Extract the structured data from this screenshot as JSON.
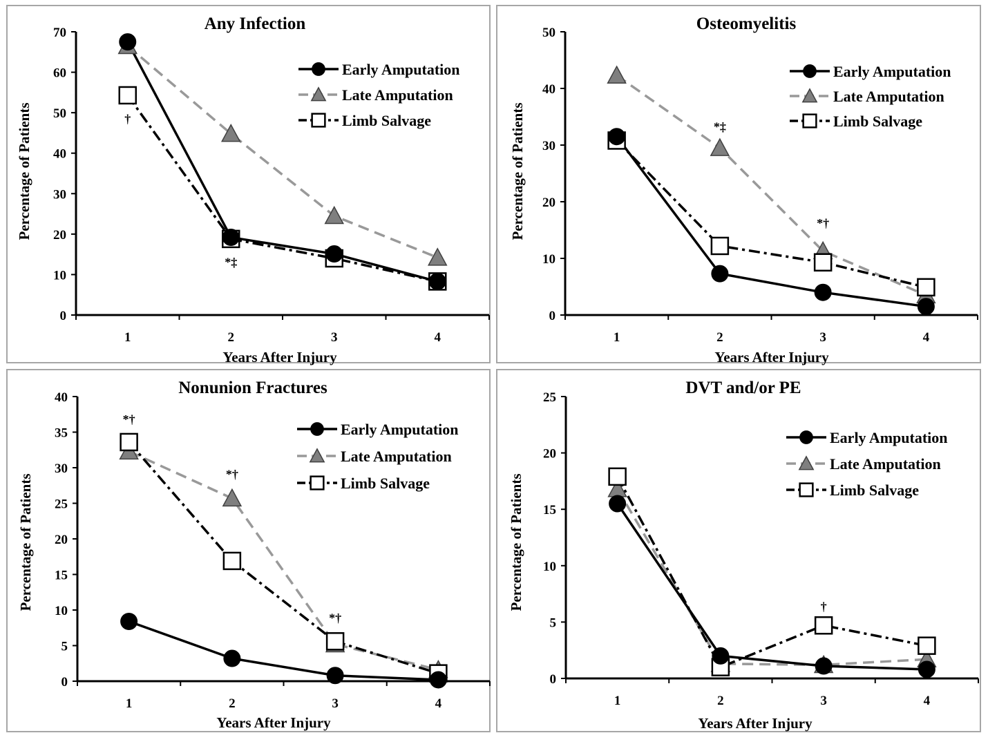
{
  "colors": {
    "early": "#000000",
    "late": "#999999",
    "late_marker": "#7f7f7f",
    "salvage": "#000000",
    "salvage_marker_fill": "#ffffff",
    "panel_border": "#a6a6a6"
  },
  "chart_data": [
    {
      "type": "line",
      "title": "Any Infection",
      "xlabel": "Years After Injury",
      "ylabel": "Percentage of Patients",
      "x": [
        1,
        2,
        3,
        4
      ],
      "ylim": [
        0,
        70
      ],
      "yticks": [
        0,
        10,
        20,
        30,
        40,
        50,
        60,
        70
      ],
      "grid": false,
      "legend_position": "top-right",
      "series": [
        {
          "name": "Early Amputation",
          "style": "solid-black-circle",
          "values": [
            67.5,
            19.2,
            15.1,
            8.3
          ]
        },
        {
          "name": "Late Amputation",
          "style": "dashed-gray-triangle",
          "values": [
            66.5,
            44.8,
            24.5,
            14.2
          ]
        },
        {
          "name": "Limb Salvage",
          "style": "dashdot-black-square",
          "values": [
            54.3,
            18.8,
            14.0,
            8.3
          ]
        }
      ],
      "annotations": [
        {
          "text": "†",
          "x": 1,
          "y": 47.5
        },
        {
          "text": "*‡",
          "x": 2,
          "y": 12.0
        }
      ]
    },
    {
      "type": "line",
      "title": "Osteomyelitis",
      "xlabel": "Years After Injury",
      "ylabel": "Percentage of Patients",
      "x": [
        1,
        2,
        3,
        4
      ],
      "ylim": [
        0,
        50
      ],
      "yticks": [
        0,
        10,
        20,
        30,
        40,
        50
      ],
      "grid": false,
      "legend_position": "top-right",
      "series": [
        {
          "name": "Early Amputation",
          "style": "solid-black-circle",
          "values": [
            31.5,
            7.3,
            4.0,
            1.5
          ]
        },
        {
          "name": "Late Amputation",
          "style": "dashed-gray-triangle",
          "values": [
            42.3,
            29.5,
            11.3,
            3.5
          ]
        },
        {
          "name": "Limb Salvage",
          "style": "dashdot-black-square",
          "values": [
            30.8,
            12.2,
            9.3,
            4.9
          ]
        }
      ],
      "annotations": [
        {
          "text": "*‡",
          "x": 2,
          "y": 32.5
        },
        {
          "text": "*†",
          "x": 3,
          "y": 15.5
        }
      ]
    },
    {
      "type": "line",
      "title": "Nonunion Fractures",
      "xlabel": "Years After Injury",
      "ylabel": "Percentage of Patients",
      "x": [
        1,
        2,
        3,
        4
      ],
      "ylim": [
        0,
        40
      ],
      "yticks": [
        0,
        5,
        10,
        15,
        20,
        25,
        30,
        35,
        40
      ],
      "grid": false,
      "legend_position": "top-right",
      "series": [
        {
          "name": "Early Amputation",
          "style": "solid-black-circle",
          "values": [
            8.4,
            3.2,
            0.8,
            0.2
          ]
        },
        {
          "name": "Late Amputation",
          "style": "dashed-gray-triangle",
          "values": [
            32.3,
            25.7,
            5.2,
            1.6
          ]
        },
        {
          "name": "Limb Salvage",
          "style": "dashdot-black-square",
          "values": [
            33.6,
            16.9,
            5.6,
            1.1
          ]
        }
      ],
      "annotations": [
        {
          "text": "*†",
          "x": 1,
          "y": 36.2
        },
        {
          "text": "*†",
          "x": 2,
          "y": 28.5
        },
        {
          "text": "*†",
          "x": 3,
          "y": 8.3
        }
      ]
    },
    {
      "type": "line",
      "title": "DVT and/or PE",
      "xlabel": "Years After Injury",
      "ylabel": "Percentage of Patients",
      "x": [
        1,
        2,
        3,
        4
      ],
      "ylim": [
        0,
        25
      ],
      "yticks": [
        0,
        5,
        10,
        15,
        20,
        25
      ],
      "grid": false,
      "legend_position": "top-right",
      "series": [
        {
          "name": "Early Amputation",
          "style": "solid-black-circle",
          "values": [
            15.5,
            2.0,
            1.1,
            0.8
          ]
        },
        {
          "name": "Late Amputation",
          "style": "dashed-gray-triangle",
          "values": [
            16.8,
            1.3,
            1.2,
            1.7
          ]
        },
        {
          "name": "Limb Salvage",
          "style": "dashdot-black-square",
          "values": [
            17.9,
            1.0,
            4.7,
            2.9
          ]
        }
      ],
      "annotations": [
        {
          "text": "†",
          "x": 3,
          "y": 6.0
        }
      ]
    }
  ]
}
